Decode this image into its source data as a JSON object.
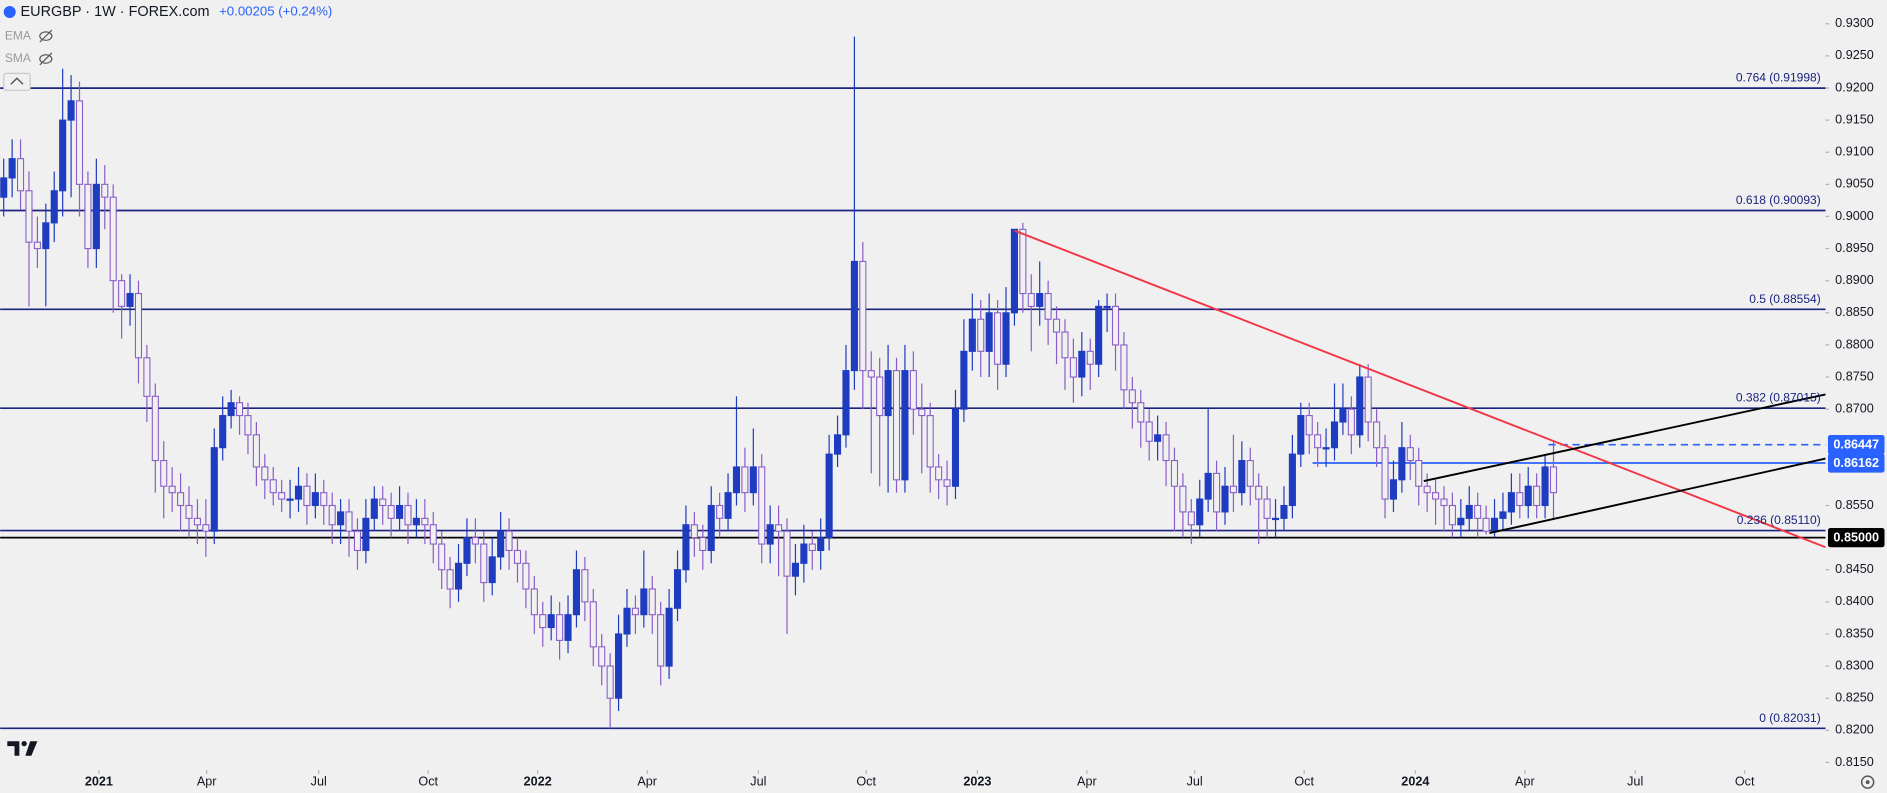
{
  "chart_data": {
    "type": "candlestick",
    "title": "EURGBP · 1W · FOREX.com",
    "change": "+0.00205 (+0.24%)",
    "indicators": [
      "EMA",
      "SMA"
    ],
    "up_color": "#1e3cc0",
    "down_color": "#8a5cc8",
    "open": [
      0.903,
      0.906,
      0.909,
      0.904,
      0.896,
      0.895,
      0.899,
      0.904,
      0.915,
      0.918,
      0.905,
      0.895,
      0.905,
      0.903,
      0.89,
      0.886,
      0.888,
      0.878,
      0.872,
      0.862,
      0.858,
      0.857,
      0.855,
      0.853,
      0.852,
      0.851,
      0.864,
      0.869,
      0.871,
      0.869,
      0.866,
      0.861,
      0.859,
      0.857,
      0.856,
      0.856,
      0.858,
      0.855,
      0.857,
      0.855,
      0.852,
      0.854,
      0.851,
      0.848,
      0.853,
      0.856,
      0.855,
      0.853,
      0.855,
      0.852,
      0.853,
      0.852,
      0.849,
      0.845,
      0.842,
      0.846,
      0.85,
      0.849,
      0.843,
      0.847,
      0.851,
      0.848,
      0.846,
      0.842,
      0.838,
      0.836,
      0.838,
      0.834,
      0.838,
      0.845,
      0.84,
      0.833,
      0.83,
      0.825,
      0.835,
      0.839,
      0.838,
      0.842,
      0.838,
      0.83,
      0.839,
      0.845,
      0.852,
      0.85,
      0.848,
      0.855,
      0.853,
      0.857,
      0.861,
      0.857,
      0.861,
      0.849,
      0.852,
      0.851,
      0.844,
      0.846,
      0.849,
      0.848,
      0.85,
      0.863,
      0.866,
      0.876,
      0.893,
      0.876,
      0.875,
      0.869,
      0.876,
      0.859,
      0.876,
      0.87,
      0.869,
      0.861,
      0.859,
      0.858,
      0.87,
      0.879,
      0.884,
      0.879,
      0.885,
      0.877,
      0.885,
      0.898,
      0.888,
      0.886,
      0.888,
      0.884,
      0.882,
      0.878,
      0.875,
      0.879,
      0.877,
      0.886,
      0.886,
      0.88,
      0.873,
      0.871,
      0.868,
      0.865,
      0.866,
      0.862,
      0.858,
      0.854,
      0.852,
      0.856,
      0.86,
      0.854,
      0.858,
      0.857,
      0.862,
      0.858,
      0.856,
      0.853,
      0.853,
      0.855,
      0.863,
      0.869,
      0.866,
      0.864,
      0.864,
      0.868,
      0.87,
      0.866,
      0.875,
      0.868,
      0.864,
      0.856,
      0.859,
      0.864,
      0.862,
      0.858,
      0.857,
      0.856,
      0.855,
      0.852,
      0.853,
      0.855,
      0.853,
      0.851,
      0.853,
      0.854,
      0.857,
      0.855,
      0.858,
      0.855,
      0.861
    ],
    "high": [
      0.909,
      0.912,
      0.912,
      0.907,
      0.9,
      0.902,
      0.907,
      0.923,
      0.922,
      0.921,
      0.907,
      0.909,
      0.908,
      0.905,
      0.891,
      0.891,
      0.89,
      0.88,
      0.874,
      0.865,
      0.861,
      0.86,
      0.858,
      0.856,
      0.856,
      0.867,
      0.872,
      0.873,
      0.872,
      0.871,
      0.868,
      0.863,
      0.861,
      0.859,
      0.859,
      0.861,
      0.86,
      0.86,
      0.859,
      0.857,
      0.856,
      0.856,
      0.853,
      0.856,
      0.858,
      0.858,
      0.857,
      0.858,
      0.857,
      0.856,
      0.856,
      0.854,
      0.851,
      0.847,
      0.849,
      0.853,
      0.853,
      0.851,
      0.85,
      0.854,
      0.853,
      0.85,
      0.848,
      0.844,
      0.84,
      0.841,
      0.84,
      0.841,
      0.848,
      0.847,
      0.842,
      0.835,
      0.832,
      0.838,
      0.842,
      0.841,
      0.848,
      0.844,
      0.84,
      0.842,
      0.848,
      0.855,
      0.854,
      0.852,
      0.858,
      0.857,
      0.86,
      0.872,
      0.864,
      0.867,
      0.863,
      0.855,
      0.855,
      0.853,
      0.849,
      0.852,
      0.851,
      0.853,
      0.866,
      0.869,
      0.88,
      0.928,
      0.896,
      0.879,
      0.878,
      0.88,
      0.878,
      0.88,
      0.879,
      0.874,
      0.871,
      0.863,
      0.862,
      0.873,
      0.884,
      0.888,
      0.887,
      0.888,
      0.887,
      0.889,
      0.898,
      0.899,
      0.891,
      0.893,
      0.89,
      0.886,
      0.884,
      0.881,
      0.882,
      0.881,
      0.887,
      0.888,
      0.888,
      0.882,
      0.875,
      0.873,
      0.87,
      0.869,
      0.868,
      0.864,
      0.86,
      0.856,
      0.859,
      0.87,
      0.862,
      0.861,
      0.866,
      0.865,
      0.864,
      0.86,
      0.858,
      0.856,
      0.858,
      0.866,
      0.871,
      0.871,
      0.868,
      0.867,
      0.874,
      0.874,
      0.872,
      0.877,
      0.877,
      0.87,
      0.866,
      0.862,
      0.868,
      0.866,
      0.864,
      0.86,
      0.859,
      0.858,
      0.857,
      0.856,
      0.858,
      0.857,
      0.855,
      0.856,
      0.857,
      0.86,
      0.86,
      0.861,
      0.86,
      0.863,
      0.865
    ],
    "low": [
      0.9,
      0.903,
      0.901,
      0.886,
      0.892,
      0.886,
      0.896,
      0.9,
      0.903,
      0.9,
      0.892,
      0.892,
      0.898,
      0.885,
      0.881,
      0.883,
      0.874,
      0.868,
      0.857,
      0.853,
      0.854,
      0.851,
      0.85,
      0.849,
      0.847,
      0.849,
      0.862,
      0.867,
      0.866,
      0.863,
      0.858,
      0.856,
      0.855,
      0.854,
      0.853,
      0.854,
      0.852,
      0.853,
      0.852,
      0.849,
      0.849,
      0.847,
      0.845,
      0.846,
      0.851,
      0.852,
      0.85,
      0.851,
      0.849,
      0.85,
      0.849,
      0.846,
      0.842,
      0.839,
      0.84,
      0.844,
      0.846,
      0.84,
      0.841,
      0.845,
      0.845,
      0.843,
      0.839,
      0.835,
      0.833,
      0.834,
      0.831,
      0.832,
      0.836,
      0.837,
      0.83,
      0.827,
      0.8203,
      0.823,
      0.833,
      0.835,
      0.836,
      0.835,
      0.827,
      0.828,
      0.837,
      0.843,
      0.847,
      0.845,
      0.846,
      0.85,
      0.851,
      0.855,
      0.854,
      0.855,
      0.846,
      0.846,
      0.844,
      0.835,
      0.841,
      0.843,
      0.845,
      0.845,
      0.848,
      0.861,
      0.864,
      0.873,
      0.87,
      0.86,
      0.858,
      0.857,
      0.857,
      0.857,
      0.866,
      0.86,
      0.857,
      0.856,
      0.855,
      0.856,
      0.868,
      0.876,
      0.875,
      0.875,
      0.873,
      0.875,
      0.883,
      0.885,
      0.879,
      0.883,
      0.88,
      0.877,
      0.873,
      0.871,
      0.872,
      0.873,
      0.875,
      0.882,
      0.876,
      0.87,
      0.867,
      0.864,
      0.862,
      0.862,
      0.858,
      0.851,
      0.85,
      0.849,
      0.85,
      0.854,
      0.851,
      0.852,
      0.854,
      0.855,
      0.855,
      0.849,
      0.85,
      0.85,
      0.851,
      0.853,
      0.861,
      0.863,
      0.861,
      0.861,
      0.862,
      0.866,
      0.863,
      0.864,
      0.865,
      0.861,
      0.853,
      0.854,
      0.857,
      0.859,
      0.855,
      0.854,
      0.852,
      0.851,
      0.85,
      0.85,
      0.851,
      0.85,
      0.8505,
      0.85,
      0.851,
      0.852,
      0.853,
      0.853,
      0.853,
      0.853,
      0.853
    ],
    "close": [
      0.906,
      0.909,
      0.904,
      0.896,
      0.895,
      0.899,
      0.904,
      0.915,
      0.918,
      0.905,
      0.895,
      0.905,
      0.903,
      0.89,
      0.886,
      0.888,
      0.878,
      0.872,
      0.862,
      0.858,
      0.857,
      0.855,
      0.853,
      0.852,
      0.851,
      0.864,
      0.869,
      0.871,
      0.869,
      0.866,
      0.861,
      0.859,
      0.857,
      0.856,
      0.856,
      0.858,
      0.855,
      0.857,
      0.855,
      0.852,
      0.854,
      0.851,
      0.848,
      0.853,
      0.856,
      0.855,
      0.853,
      0.855,
      0.852,
      0.853,
      0.852,
      0.849,
      0.845,
      0.842,
      0.846,
      0.85,
      0.849,
      0.843,
      0.847,
      0.851,
      0.848,
      0.846,
      0.842,
      0.838,
      0.836,
      0.838,
      0.834,
      0.838,
      0.845,
      0.84,
      0.833,
      0.83,
      0.825,
      0.835,
      0.839,
      0.838,
      0.842,
      0.838,
      0.83,
      0.839,
      0.845,
      0.852,
      0.85,
      0.848,
      0.855,
      0.853,
      0.857,
      0.861,
      0.857,
      0.861,
      0.849,
      0.852,
      0.851,
      0.844,
      0.846,
      0.849,
      0.848,
      0.85,
      0.863,
      0.866,
      0.876,
      0.893,
      0.876,
      0.875,
      0.869,
      0.876,
      0.859,
      0.876,
      0.87,
      0.869,
      0.861,
      0.859,
      0.858,
      0.87,
      0.879,
      0.884,
      0.879,
      0.885,
      0.877,
      0.885,
      0.898,
      0.888,
      0.886,
      0.888,
      0.884,
      0.882,
      0.878,
      0.875,
      0.879,
      0.877,
      0.886,
      0.886,
      0.88,
      0.873,
      0.871,
      0.868,
      0.865,
      0.866,
      0.862,
      0.858,
      0.854,
      0.852,
      0.856,
      0.86,
      0.854,
      0.858,
      0.857,
      0.862,
      0.858,
      0.856,
      0.853,
      0.853,
      0.855,
      0.863,
      0.869,
      0.866,
      0.864,
      0.864,
      0.868,
      0.87,
      0.866,
      0.875,
      0.868,
      0.864,
      0.856,
      0.859,
      0.864,
      0.862,
      0.858,
      0.857,
      0.856,
      0.855,
      0.852,
      0.853,
      0.855,
      0.853,
      0.851,
      0.853,
      0.854,
      0.857,
      0.855,
      0.858,
      0.855,
      0.861,
      0.857
    ],
    "xlim": [
      -0.43,
      216.3
    ],
    "ylim": [
      0.8138,
      0.9337
    ],
    "xticks": [
      {
        "value": 11.3,
        "label": "2021"
      },
      {
        "value": 24.1,
        "label": "Apr"
      },
      {
        "value": 37.4,
        "label": "Jul"
      },
      {
        "value": 50.4,
        "label": "Oct"
      },
      {
        "value": 63.4,
        "label": "2022"
      },
      {
        "value": 76.4,
        "label": "Apr"
      },
      {
        "value": 89.6,
        "label": "Jul"
      },
      {
        "value": 102.4,
        "label": "Oct"
      },
      {
        "value": 115.6,
        "label": "2023"
      },
      {
        "value": 128.6,
        "label": "Apr"
      },
      {
        "value": 141.4,
        "label": "Jul"
      },
      {
        "value": 154.4,
        "label": "Oct"
      },
      {
        "value": 167.6,
        "label": "2024"
      },
      {
        "value": 180.6,
        "label": "Apr"
      },
      {
        "value": 193.7,
        "label": "Jul"
      },
      {
        "value": 206.7,
        "label": "Oct"
      }
    ],
    "yticks": [
      {
        "value": 0.815,
        "label": "0.8150"
      },
      {
        "value": 0.82,
        "label": "0.8200"
      },
      {
        "value": 0.825,
        "label": "0.8250"
      },
      {
        "value": 0.83,
        "label": "0.8300"
      },
      {
        "value": 0.835,
        "label": "0.8350"
      },
      {
        "value": 0.84,
        "label": "0.8400"
      },
      {
        "value": 0.845,
        "label": "0.8450"
      },
      {
        "value": 0.855,
        "label": "0.8550"
      },
      {
        "value": 0.87,
        "label": "0.8700"
      },
      {
        "value": 0.875,
        "label": "0.8750"
      },
      {
        "value": 0.88,
        "label": "0.8800"
      },
      {
        "value": 0.885,
        "label": "0.8850"
      },
      {
        "value": 0.89,
        "label": "0.8900"
      },
      {
        "value": 0.895,
        "label": "0.8950"
      },
      {
        "value": 0.9,
        "label": "0.9000"
      },
      {
        "value": 0.905,
        "label": "0.9050"
      },
      {
        "value": 0.91,
        "label": "0.9100"
      },
      {
        "value": 0.915,
        "label": "0.9150"
      },
      {
        "value": 0.92,
        "label": "0.9200"
      },
      {
        "value": 0.925,
        "label": "0.9250"
      },
      {
        "value": 0.93,
        "label": "0.9300"
      }
    ],
    "fib_color": "#1a237e",
    "fib_levels": [
      {
        "value": 0.91998,
        "label": "0.764 (0.91998)"
      },
      {
        "value": 0.90093,
        "label": "0.618 (0.90093)"
      },
      {
        "value": 0.88554,
        "label": "0.5 (0.88554)"
      },
      {
        "value": 0.87015,
        "label": "0.382 (0.87015)"
      },
      {
        "value": 0.8511,
        "label": "0.236 (0.85110)"
      },
      {
        "value": 0.82031,
        "label": "0 (0.82031)"
      }
    ],
    "hlines": [
      {
        "value": 0.85,
        "label": "0.85000",
        "color": "#000000"
      },
      {
        "value": 0.86162,
        "color": "#2962ff",
        "start": 155.4
      },
      {
        "value": 0.86447,
        "color": "#2962ff",
        "start": 183.4,
        "dashed": true
      }
    ],
    "trendlines": [
      {
        "color": "#f23645",
        "points": [
          [
            120,
            0.8978
          ],
          [
            216.3,
            0.8485
          ]
        ]
      },
      {
        "color": "#000000",
        "points": [
          [
            168.6,
            0.8588
          ],
          [
            216.3,
            0.8723
          ]
        ]
      },
      {
        "color": "#000000",
        "points": [
          [
            176.4,
            0.8507
          ],
          [
            216.3,
            0.8623
          ]
        ]
      }
    ]
  }
}
